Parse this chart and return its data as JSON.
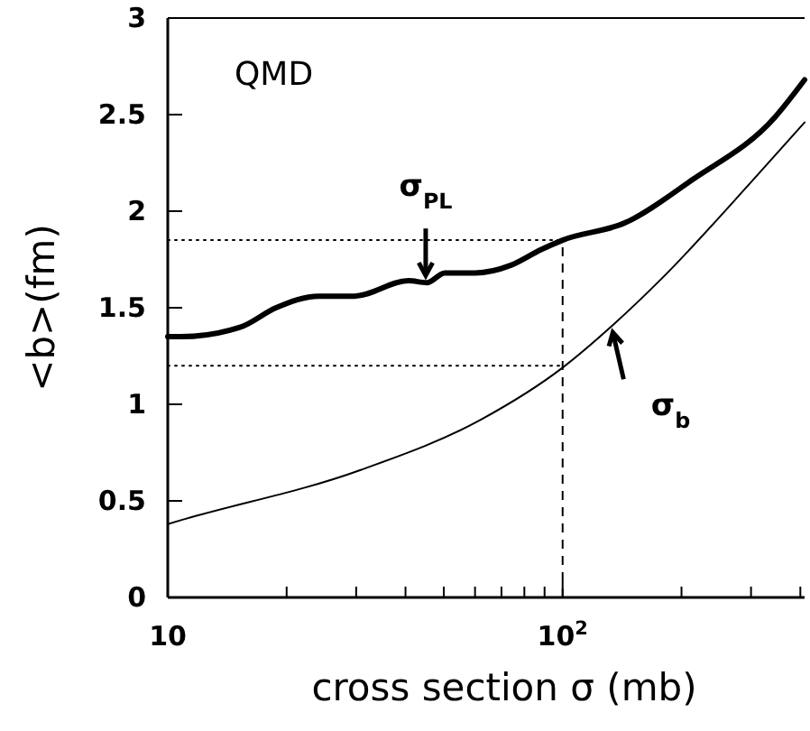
{
  "chart_data": {
    "type": "line",
    "xlabel": "cross section σ (mb)",
    "ylabel": "<b>(fm)",
    "log": "x",
    "xlim": [
      10,
      410
    ],
    "xticks": [
      10,
      {
        "value": 20,
        "label": null
      },
      {
        "value": 30,
        "label": null
      },
      {
        "value": 40,
        "label": null
      },
      {
        "value": 50,
        "label": null
      },
      {
        "value": 60,
        "label": null
      },
      {
        "value": 70,
        "label": null
      },
      {
        "value": 80,
        "label": null
      },
      {
        "value": 90,
        "label": null
      },
      {
        "value": 100,
        "label": "10$^{2}$"
      },
      {
        "value": 200,
        "label": null
      },
      {
        "value": 300,
        "label": null
      },
      {
        "value": 400,
        "label": null
      }
    ],
    "ylim": [
      0,
      3
    ],
    "yticks": [
      0,
      0.5,
      1,
      1.5,
      2,
      2.5,
      3
    ],
    "annotations": [
      "QMD",
      {
        "text": "σ$_{PL}$",
        "x": 45,
        "y": 1.63
      },
      {
        "text": "σ$_{b}$",
        "x": 134,
        "y": 1.41
      }
    ],
    "series": [
      {
        "color": "#000000",
        "line_style": "solid",
        "x": [
          10,
          10.8,
          15.3,
          18.8,
          24.1,
          29.7,
          40.7,
          45.3,
          50.3,
          60,
          74,
          88,
          100,
          144,
          212,
          346,
          410
        ],
        "values": [
          1.35,
          1.35,
          1.4,
          1.5,
          1.56,
          1.56,
          1.64,
          1.63,
          1.68,
          1.68,
          1.72,
          1.8,
          1.85,
          1.94,
          2.16,
          2.49,
          2.68
        ]
      },
      {
        "color": "#000000",
        "line_style": "solid",
        "x": [
          10,
          10.8,
          30.8,
          62,
          100,
          134,
          178,
          300,
          410
        ],
        "values": [
          0.38,
          0.4,
          0.66,
          0.92,
          1.19,
          1.41,
          1.65,
          2.15,
          2.46
        ]
      },
      {
        "color": "#000000",
        "line_style": "dotted",
        "x": [
          10,
          100
        ],
        "values": [
          1.85,
          1.85
        ]
      },
      {
        "color": "#000000",
        "line_style": "dotted",
        "x": [
          10,
          100
        ],
        "values": [
          1.2,
          1.2
        ]
      }
    ],
    "ref_lines": [
      {
        "axis": "x",
        "value": 100,
        "color": "#000000",
        "line_style": "dashed"
      }
    ]
  }
}
